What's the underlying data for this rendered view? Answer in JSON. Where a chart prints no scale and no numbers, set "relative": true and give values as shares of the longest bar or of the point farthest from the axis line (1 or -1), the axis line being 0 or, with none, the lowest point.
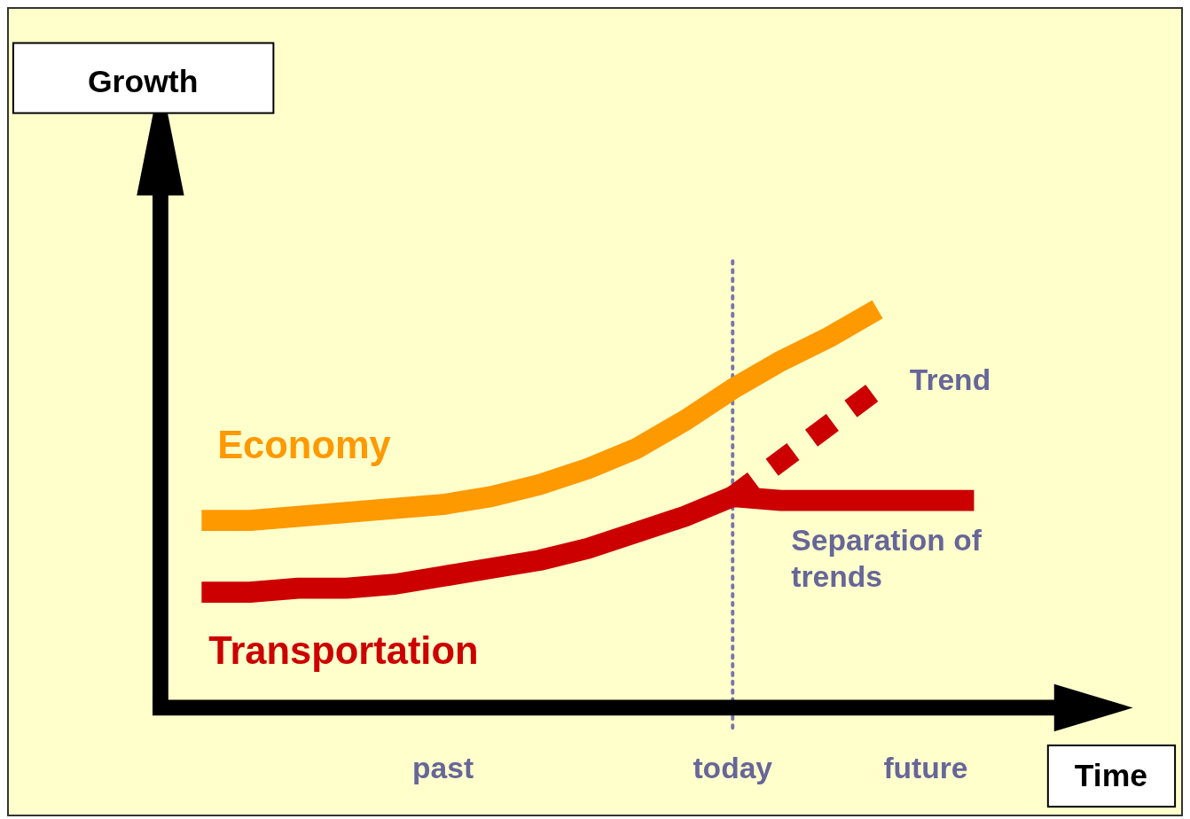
{
  "chart_data": {
    "type": "line",
    "relative": true,
    "xlabel": "Time",
    "line_style": "solid",
    "marker": "none",
    "legend": false,
    "categories": [
      null,
      null,
      null,
      null,
      null,
      "past",
      null,
      null,
      null,
      null,
      null,
      "today",
      null,
      null,
      null,
      "future",
      null
    ],
    "series": [
      {
        "name": "Economy",
        "color": "#ff9900",
        "values": [
          0.47,
          0.47,
          0.48,
          0.49,
          0.5,
          0.51,
          0.53,
          0.56,
          0.6,
          0.65,
          0.72,
          0.8,
          0.87,
          0.93,
          1,
          null,
          null
        ]
      },
      {
        "name": "Transportation",
        "color": "#cc0000",
        "values": [
          0.29,
          0.29,
          0.3,
          0.3,
          0.31,
          0.33,
          0.35,
          0.37,
          0.4,
          0.44,
          0.48,
          0.53,
          0.52,
          0.52,
          0.52,
          0.52,
          0.52
        ]
      },
      {
        "name": "Trend",
        "color": "#cc0000",
        "line_style": "dashed",
        "values": [
          null,
          null,
          null,
          null,
          null,
          null,
          null,
          null,
          null,
          null,
          null,
          0.53,
          0.62,
          0.71,
          0.8,
          null,
          null
        ]
      }
    ],
    "ref_lines": [
      {
        "axis": "x",
        "value": "today",
        "color": "#7777aa",
        "line_style": "dotted"
      }
    ],
    "annotations": [
      "Separation of trends",
      "Growth"
    ]
  }
}
